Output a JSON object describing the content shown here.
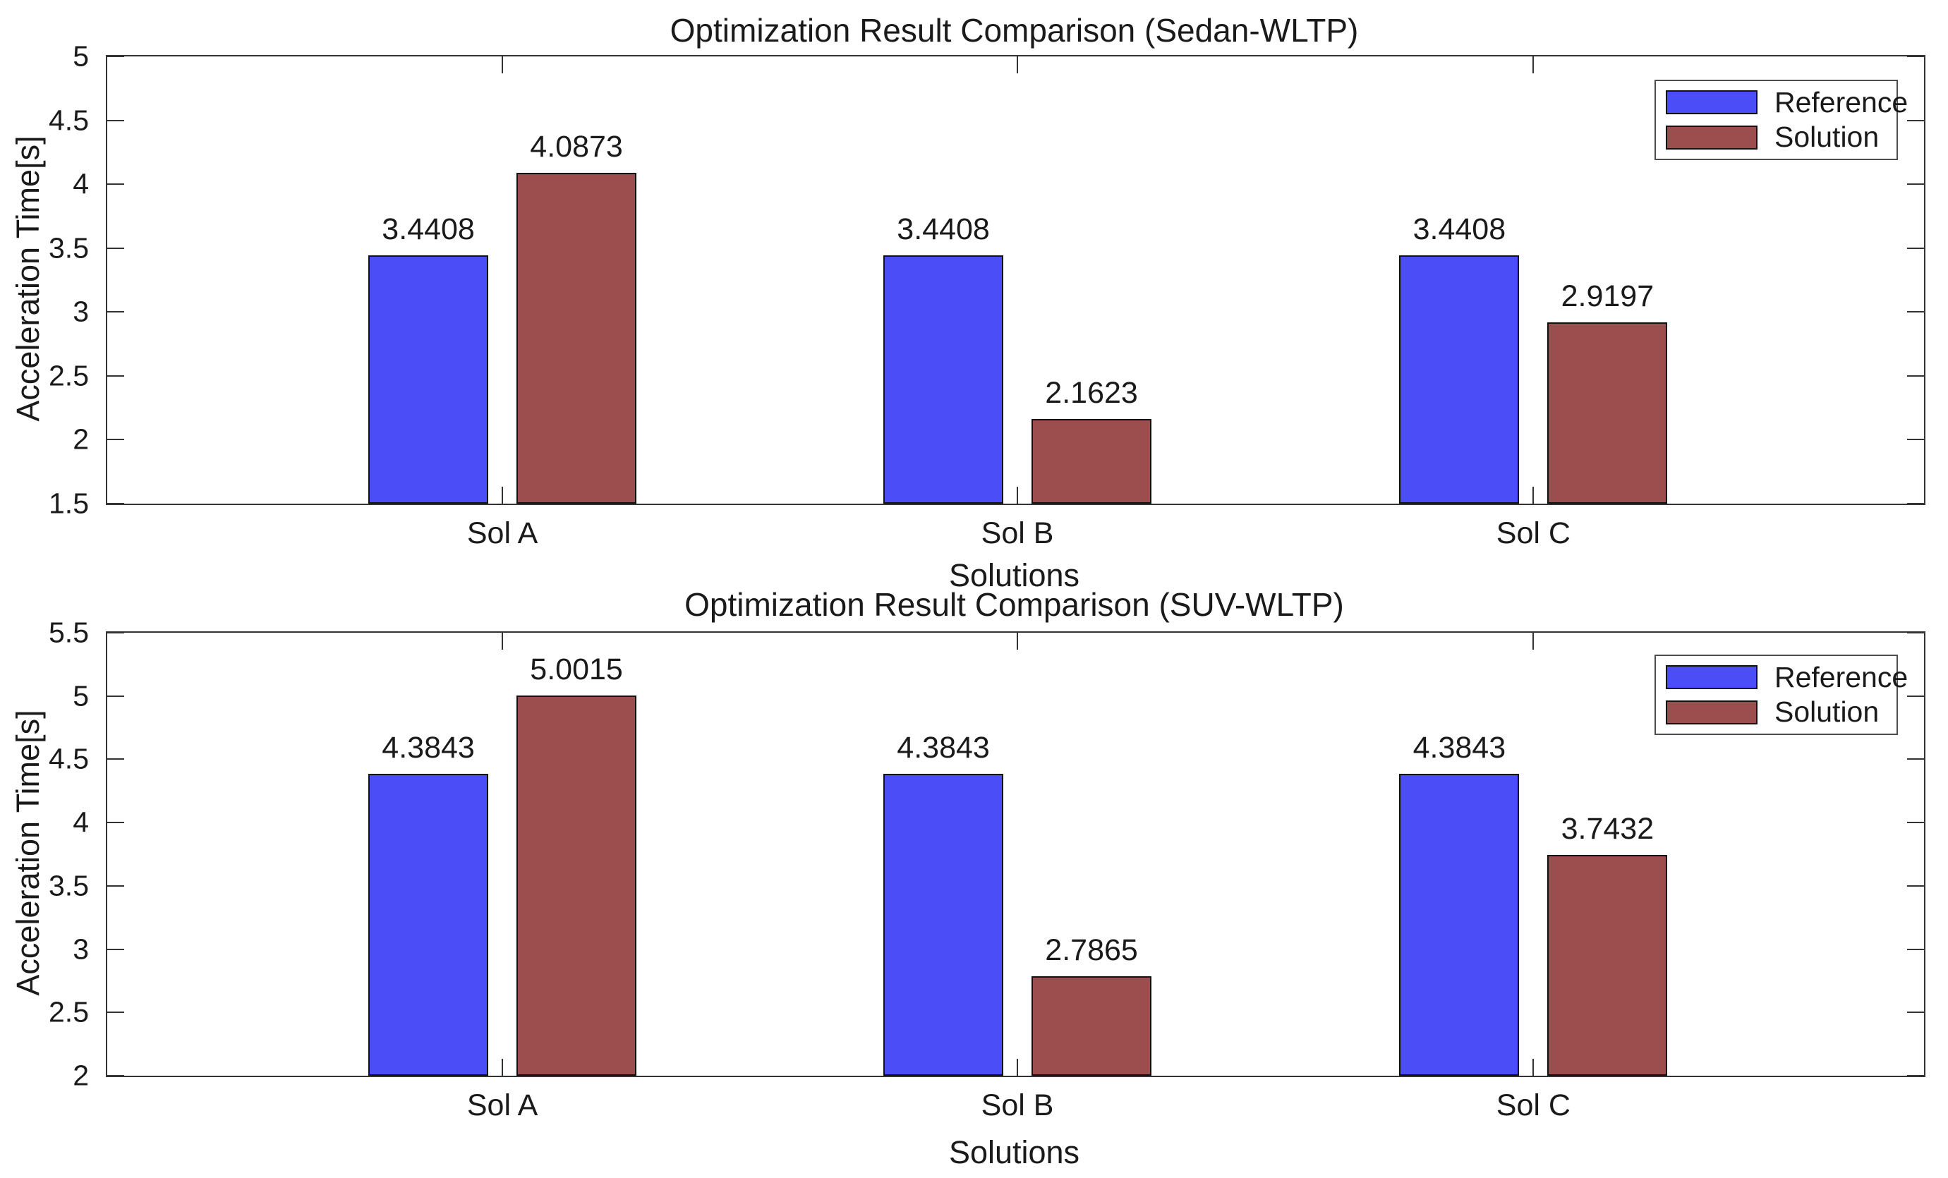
{
  "figure": {
    "background": "#ffffff",
    "axis_color": "#333333",
    "text_color": "#1a1a1a",
    "reference_color": "#4b4df7",
    "solution_color": "#9c4d4d"
  },
  "chart_data": [
    {
      "type": "bar",
      "title": "Optimization Result Comparison (Sedan-WLTP)",
      "xlabel": "Solutions",
      "ylabel": "Acceleration Time[s]",
      "categories": [
        "Sol A",
        "Sol B",
        "Sol C"
      ],
      "series": [
        {
          "name": "Reference",
          "color": "#4b4df7",
          "values": [
            3.4408,
            3.4408,
            3.4408
          ],
          "value_labels": [
            "3.4408",
            "3.4408",
            "3.4408"
          ]
        },
        {
          "name": "Solution",
          "color": "#9c4d4d",
          "values": [
            4.0873,
            2.1623,
            2.9197
          ],
          "value_labels": [
            "4.0873",
            "2.1623",
            "2.9197"
          ]
        }
      ],
      "ylim": [
        1.5,
        5
      ],
      "yticks": [
        1.5,
        2,
        2.5,
        3,
        3.5,
        4,
        4.5,
        5
      ],
      "ytick_labels": [
        "1.5",
        "2",
        "2.5",
        "3",
        "3.5",
        "4",
        "4.5",
        "5"
      ],
      "legend": [
        "Reference",
        "Solution"
      ],
      "legend_position": "top-right",
      "grid": false,
      "value_labels_shown": true
    },
    {
      "type": "bar",
      "title": "Optimization Result Comparison (SUV-WLTP)",
      "xlabel": "Solutions",
      "ylabel": "Acceleration Time[s]",
      "categories": [
        "Sol A",
        "Sol B",
        "Sol C"
      ],
      "series": [
        {
          "name": "Reference",
          "color": "#4b4df7",
          "values": [
            4.3843,
            4.3843,
            4.3843
          ],
          "value_labels": [
            "4.3843",
            "4.3843",
            "4.3843"
          ]
        },
        {
          "name": "Solution",
          "color": "#9c4d4d",
          "values": [
            5.0015,
            2.7865,
            3.7432
          ],
          "value_labels": [
            "5.0015",
            "2.7865",
            "3.7432"
          ]
        }
      ],
      "ylim": [
        2,
        5.5
      ],
      "yticks": [
        2,
        2.5,
        3,
        3.5,
        4,
        4.5,
        5,
        5.5
      ],
      "ytick_labels": [
        "2",
        "2.5",
        "3",
        "3.5",
        "4",
        "4.5",
        "5",
        "5.5"
      ],
      "legend": [
        "Reference",
        "Solution"
      ],
      "legend_position": "top-right",
      "grid": false,
      "value_labels_shown": true
    }
  ]
}
